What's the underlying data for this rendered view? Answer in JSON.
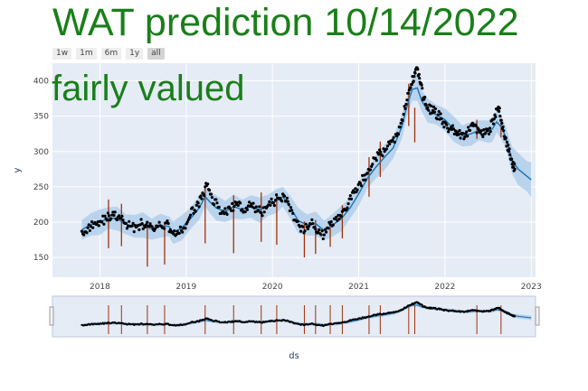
{
  "title": "WAT prediction 10/14/2022",
  "subtitle": "fairly valued",
  "title_color": "#1a7f1a",
  "range_buttons": [
    {
      "label": "1w",
      "active": false
    },
    {
      "label": "1m",
      "active": false
    },
    {
      "label": "6m",
      "active": false
    },
    {
      "label": "1y",
      "active": false
    },
    {
      "label": "all",
      "active": true
    }
  ],
  "chart_data": {
    "type": "scatter",
    "xlabel": "ds",
    "ylabel": "y",
    "x_range": [
      2017.45,
      2023.05
    ],
    "ylim": [
      122,
      425
    ],
    "x_ticks": [
      {
        "label": "2018",
        "value": 2018
      },
      {
        "label": "2019",
        "value": 2019
      },
      {
        "label": "2020",
        "value": 2020
      },
      {
        "label": "2021",
        "value": 2021
      },
      {
        "label": "2022",
        "value": 2022
      },
      {
        "label": "2023",
        "value": 2023
      }
    ],
    "y_ticks": [
      150,
      200,
      250,
      300,
      350,
      400
    ],
    "colors": {
      "plot_bg": "#e5ecf6",
      "grid": "#ffffff",
      "actual": "#000000",
      "forecast_line": "#1f77b4",
      "uncertainty_band": "#a9cbe8",
      "changepoints": "#a0320a"
    },
    "forecast": [
      [
        2017.79,
        189
      ],
      [
        2017.9,
        197
      ],
      [
        2018.0,
        200
      ],
      [
        2018.1,
        206
      ],
      [
        2018.2,
        205
      ],
      [
        2018.3,
        197
      ],
      [
        2018.4,
        194
      ],
      [
        2018.5,
        196
      ],
      [
        2018.6,
        190
      ],
      [
        2018.7,
        195
      ],
      [
        2018.8,
        194
      ],
      [
        2018.85,
        185
      ],
      [
        2018.95,
        192
      ],
      [
        2019.05,
        205
      ],
      [
        2019.15,
        220
      ],
      [
        2019.22,
        236
      ],
      [
        2019.28,
        228
      ],
      [
        2019.35,
        220
      ],
      [
        2019.45,
        215
      ],
      [
        2019.55,
        222
      ],
      [
        2019.65,
        218
      ],
      [
        2019.75,
        222
      ],
      [
        2019.85,
        217
      ],
      [
        2019.95,
        224
      ],
      [
        2020.05,
        230
      ],
      [
        2020.12,
        236
      ],
      [
        2020.2,
        222
      ],
      [
        2020.3,
        202
      ],
      [
        2020.4,
        196
      ],
      [
        2020.5,
        198
      ],
      [
        2020.6,
        188
      ],
      [
        2020.7,
        196
      ],
      [
        2020.8,
        205
      ],
      [
        2020.9,
        220
      ],
      [
        2021.0,
        240
      ],
      [
        2021.1,
        262
      ],
      [
        2021.2,
        278
      ],
      [
        2021.3,
        292
      ],
      [
        2021.4,
        305
      ],
      [
        2021.5,
        335
      ],
      [
        2021.55,
        360
      ],
      [
        2021.62,
        388
      ],
      [
        2021.68,
        390
      ],
      [
        2021.73,
        372
      ],
      [
        2021.8,
        358
      ],
      [
        2021.9,
        352
      ],
      [
        2022.0,
        345
      ],
      [
        2022.1,
        332
      ],
      [
        2022.2,
        322
      ],
      [
        2022.3,
        325
      ],
      [
        2022.4,
        330
      ],
      [
        2022.5,
        328
      ],
      [
        2022.55,
        332
      ],
      [
        2022.6,
        342
      ],
      [
        2022.65,
        335
      ],
      [
        2022.7,
        322
      ],
      [
        2022.78,
        287
      ],
      [
        2022.85,
        275
      ],
      [
        2022.95,
        265
      ],
      [
        2023.0,
        260
      ]
    ],
    "actual": [
      [
        2017.79,
        187
      ],
      [
        2017.86,
        192
      ],
      [
        2017.93,
        198
      ],
      [
        2018.0,
        201
      ],
      [
        2018.07,
        205
      ],
      [
        2018.14,
        210
      ],
      [
        2018.21,
        207
      ],
      [
        2018.28,
        199
      ],
      [
        2018.35,
        194
      ],
      [
        2018.42,
        193
      ],
      [
        2018.49,
        198
      ],
      [
        2018.56,
        194
      ],
      [
        2018.63,
        188
      ],
      [
        2018.7,
        195
      ],
      [
        2018.77,
        199
      ],
      [
        2018.84,
        186
      ],
      [
        2018.91,
        184
      ],
      [
        2018.98,
        192
      ],
      [
        2019.05,
        210
      ],
      [
        2019.12,
        224
      ],
      [
        2019.18,
        233
      ],
      [
        2019.24,
        252
      ],
      [
        2019.3,
        235
      ],
      [
        2019.37,
        221
      ],
      [
        2019.44,
        212
      ],
      [
        2019.51,
        219
      ],
      [
        2019.58,
        225
      ],
      [
        2019.65,
        218
      ],
      [
        2019.72,
        223
      ],
      [
        2019.79,
        220
      ],
      [
        2019.86,
        214
      ],
      [
        2019.93,
        220
      ],
      [
        2020.0,
        228
      ],
      [
        2020.07,
        234
      ],
      [
        2020.13,
        238
      ],
      [
        2020.19,
        225
      ],
      [
        2020.26,
        203
      ],
      [
        2020.33,
        187
      ],
      [
        2020.4,
        193
      ],
      [
        2020.47,
        198
      ],
      [
        2020.53,
        186
      ],
      [
        2020.6,
        182
      ],
      [
        2020.67,
        197
      ],
      [
        2020.74,
        207
      ],
      [
        2020.81,
        215
      ],
      [
        2020.88,
        226
      ],
      [
        2020.95,
        242
      ],
      [
        2021.02,
        255
      ],
      [
        2021.09,
        268
      ],
      [
        2021.16,
        282
      ],
      [
        2021.23,
        296
      ],
      [
        2021.3,
        300
      ],
      [
        2021.37,
        315
      ],
      [
        2021.44,
        322
      ],
      [
        2021.5,
        345
      ],
      [
        2021.56,
        373
      ],
      [
        2021.61,
        395
      ],
      [
        2021.65,
        412
      ],
      [
        2021.68,
        418
      ],
      [
        2021.71,
        398
      ],
      [
        2021.75,
        376
      ],
      [
        2021.8,
        362
      ],
      [
        2021.86,
        358
      ],
      [
        2021.92,
        352
      ],
      [
        2021.98,
        342
      ],
      [
        2022.04,
        328
      ],
      [
        2022.1,
        332
      ],
      [
        2022.16,
        324
      ],
      [
        2022.22,
        318
      ],
      [
        2022.28,
        330
      ],
      [
        2022.34,
        338
      ],
      [
        2022.4,
        328
      ],
      [
        2022.46,
        325
      ],
      [
        2022.52,
        333
      ],
      [
        2022.57,
        346
      ],
      [
        2022.62,
        363
      ],
      [
        2022.66,
        340
      ],
      [
        2022.7,
        318
      ],
      [
        2022.74,
        300
      ],
      [
        2022.78,
        282
      ],
      [
        2022.81,
        275
      ]
    ],
    "changepoints": [
      [
        2018.1,
        232,
        163
      ],
      [
        2018.25,
        226,
        166
      ],
      [
        2018.55,
        198,
        137
      ],
      [
        2018.75,
        200,
        140
      ],
      [
        2019.22,
        252,
        170
      ],
      [
        2019.55,
        238,
        156
      ],
      [
        2019.87,
        242,
        172
      ],
      [
        2020.05,
        238,
        168
      ],
      [
        2020.37,
        201,
        150
      ],
      [
        2020.5,
        203,
        155
      ],
      [
        2020.67,
        199,
        165
      ],
      [
        2020.81,
        224,
        177
      ],
      [
        2021.12,
        292,
        236
      ],
      [
        2021.25,
        314,
        264
      ],
      [
        2021.58,
        396,
        336
      ],
      [
        2021.65,
        362,
        313
      ],
      [
        2022.37,
        345,
        318
      ],
      [
        2022.65,
        341,
        320
      ]
    ],
    "band_halfwidth": 14,
    "band_halfwidth_end": 22
  }
}
